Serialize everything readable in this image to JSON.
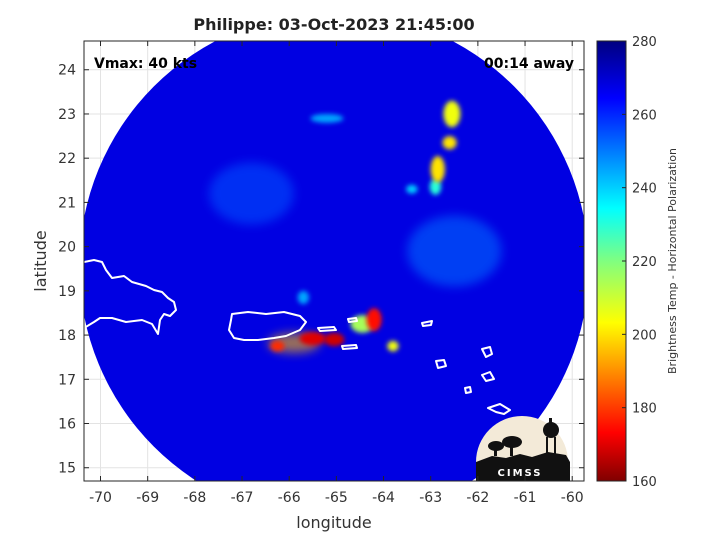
{
  "title": "Philippe: 03-Oct-2023 21:45:00",
  "annotations": {
    "vmax": "Vmax: 40 kts",
    "time_away": "00:14 away"
  },
  "logo_text": "CIMSS",
  "chart_data": {
    "type": "heatmap",
    "title": "Philippe: 03-Oct-2023 21:45:00",
    "xlabel": "longitude",
    "ylabel": "latitude",
    "xlim": [
      -70.35,
      -59.75
    ],
    "ylim": [
      14.7,
      24.65
    ],
    "xticks": [
      -70,
      -69,
      -68,
      -67,
      -66,
      -65,
      -64,
      -63,
      -62,
      -61,
      -60
    ],
    "yticks": [
      15,
      16,
      17,
      18,
      19,
      20,
      21,
      22,
      23,
      24
    ],
    "grid": true,
    "colorbar": {
      "label": "Brightness Temp - Horizontal Polarization",
      "range": [
        160,
        280
      ],
      "ticks": [
        160,
        180,
        200,
        220,
        240,
        260,
        280
      ],
      "colormap": "jet"
    },
    "swath": {
      "center": [
        -65.05,
        19.55
      ],
      "radius_deg": 5.4,
      "background_tb": 268
    },
    "cold_features": [
      {
        "lon": -65.9,
        "lat": 17.82,
        "tb": 195,
        "sx": 0.55,
        "sy": 0.22
      },
      {
        "lon": -65.5,
        "lat": 17.92,
        "tb": 170,
        "sx": 0.28,
        "sy": 0.15
      },
      {
        "lon": -65.05,
        "lat": 17.9,
        "tb": 168,
        "sx": 0.22,
        "sy": 0.15
      },
      {
        "lon": -66.25,
        "lat": 17.75,
        "tb": 178,
        "sx": 0.15,
        "sy": 0.12
      },
      {
        "lon": -64.2,
        "lat": 18.35,
        "tb": 175,
        "sx": 0.16,
        "sy": 0.26
      },
      {
        "lon": -64.45,
        "lat": 18.25,
        "tb": 215,
        "sx": 0.25,
        "sy": 0.2
      },
      {
        "lon": -63.8,
        "lat": 17.75,
        "tb": 205,
        "sx": 0.12,
        "sy": 0.12
      },
      {
        "lon": -62.55,
        "lat": 23.0,
        "tb": 205,
        "sx": 0.18,
        "sy": 0.3
      },
      {
        "lon": -62.6,
        "lat": 22.35,
        "tb": 200,
        "sx": 0.15,
        "sy": 0.15
      },
      {
        "lon": -62.85,
        "lat": 21.75,
        "tb": 200,
        "sx": 0.15,
        "sy": 0.3
      },
      {
        "lon": -62.9,
        "lat": 21.35,
        "tb": 230,
        "sx": 0.12,
        "sy": 0.18
      },
      {
        "lon": -63.4,
        "lat": 21.3,
        "tb": 240,
        "sx": 0.12,
        "sy": 0.1
      },
      {
        "lon": -65.2,
        "lat": 22.9,
        "tb": 245,
        "sx": 0.35,
        "sy": 0.1
      },
      {
        "lon": -65.7,
        "lat": 18.85,
        "tb": 245,
        "sx": 0.12,
        "sy": 0.15
      },
      {
        "lon": -62.5,
        "lat": 19.9,
        "tb": 252,
        "sx": 1.0,
        "sy": 0.8
      },
      {
        "lon": -66.8,
        "lat": 21.2,
        "tb": 255,
        "sx": 0.9,
        "sy": 0.7
      }
    ]
  }
}
